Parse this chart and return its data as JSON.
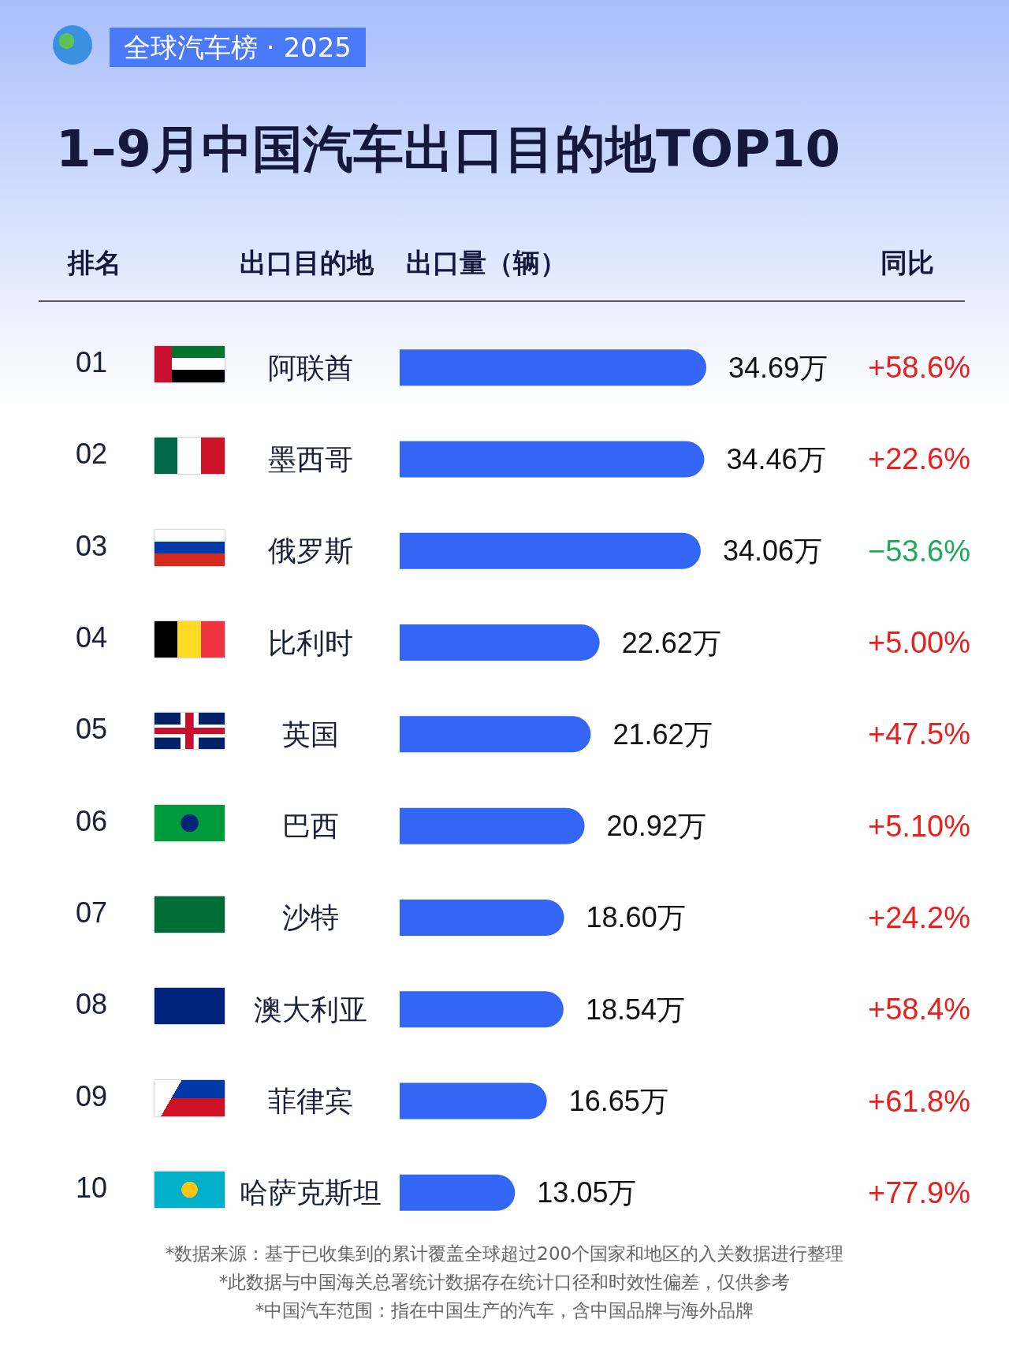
{
  "chart_data": {
    "type": "bar",
    "orientation": "horizontal",
    "title": "1–9月中国汽车出口目的地TOP10",
    "subtitle": "全球汽车榜 · 2025",
    "ylabel": "出口目的地",
    "xlabel": "出口量（辆）",
    "tick_labels": "y",
    "categories": [
      "阿联酋",
      "墨西哥",
      "俄罗斯",
      "比利时",
      "英国",
      "巴西",
      "沙特",
      "澳大利亚",
      "菲律宾",
      "哈萨克斯坦"
    ],
    "values": [
      34.69,
      34.46,
      34.06,
      22.62,
      21.62,
      20.92,
      18.6,
      18.54,
      16.65,
      13.05
    ],
    "value_labels": [
      "34.69万",
      "34.46万",
      "34.06万",
      "22.62万",
      "21.62万",
      "20.92万",
      "18.60万",
      "18.54万",
      "16.65万",
      "13.05万"
    ],
    "color": "#3366f5",
    "annotations": [
      "排名",
      "同比",
      "01",
      "02",
      "03",
      "04",
      "05",
      "06",
      "07",
      "08",
      "09",
      "10",
      "+58.6%",
      "+22.6%",
      "−53.6%",
      "+5.00%",
      "+47.5%",
      "+5.10%",
      "+24.2%",
      "+58.4%",
      "+61.8%",
      "+77.9%",
      "*数据来源：基于已收集到的累计覆盖全球超过200个国家和地区的入关数据进行整理",
      "*此数据与中国海关总署统计数据存在统计口径和时效性偏差，仅供参考",
      "*中国汽车范围：指在中国生产的汽车，含中国品牌与海外品牌"
    ]
  }
}
